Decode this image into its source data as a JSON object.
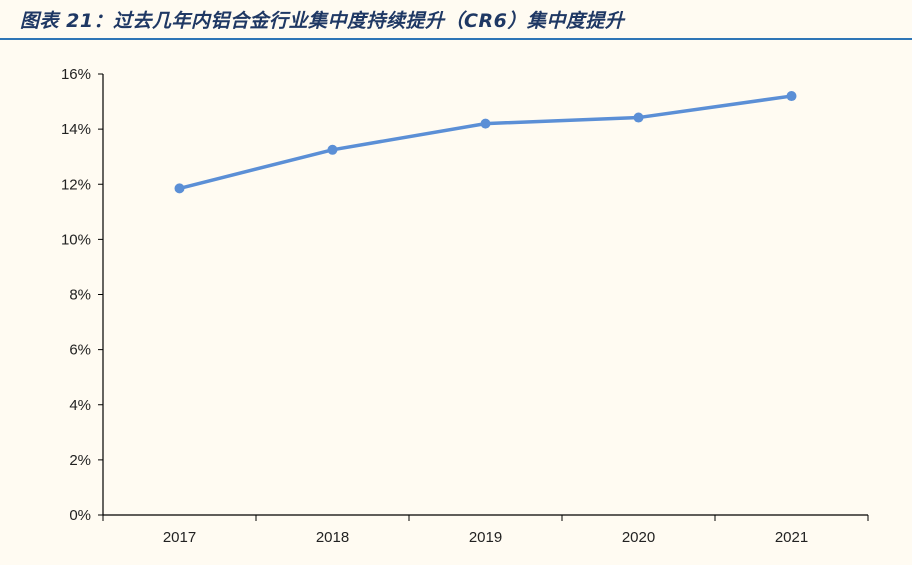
{
  "figure_title": "图表 21：过去几年内铝合金行业集中度持续提升（CR6）集中度提升",
  "chart_data": {
    "type": "line",
    "title": "图表 21：过去几年内铝合金行业集中度持续提升（CR6）集中度提升",
    "xlabel": "",
    "ylabel": "",
    "categories": [
      "2017",
      "2018",
      "2019",
      "2020",
      "2021"
    ],
    "series": [
      {
        "values": [
          11.85,
          13.25,
          14.2,
          14.42,
          15.2
        ],
        "color": "#5b8fd6"
      }
    ],
    "ylim": [
      0,
      16
    ],
    "yticks": [
      0,
      2,
      4,
      6,
      8,
      10,
      12,
      14,
      16
    ],
    "ytick_labels": [
      "0%",
      "2%",
      "4%",
      "6%",
      "8%",
      "10%",
      "12%",
      "14%",
      "16%"
    ],
    "grid": false,
    "legend": "none"
  }
}
